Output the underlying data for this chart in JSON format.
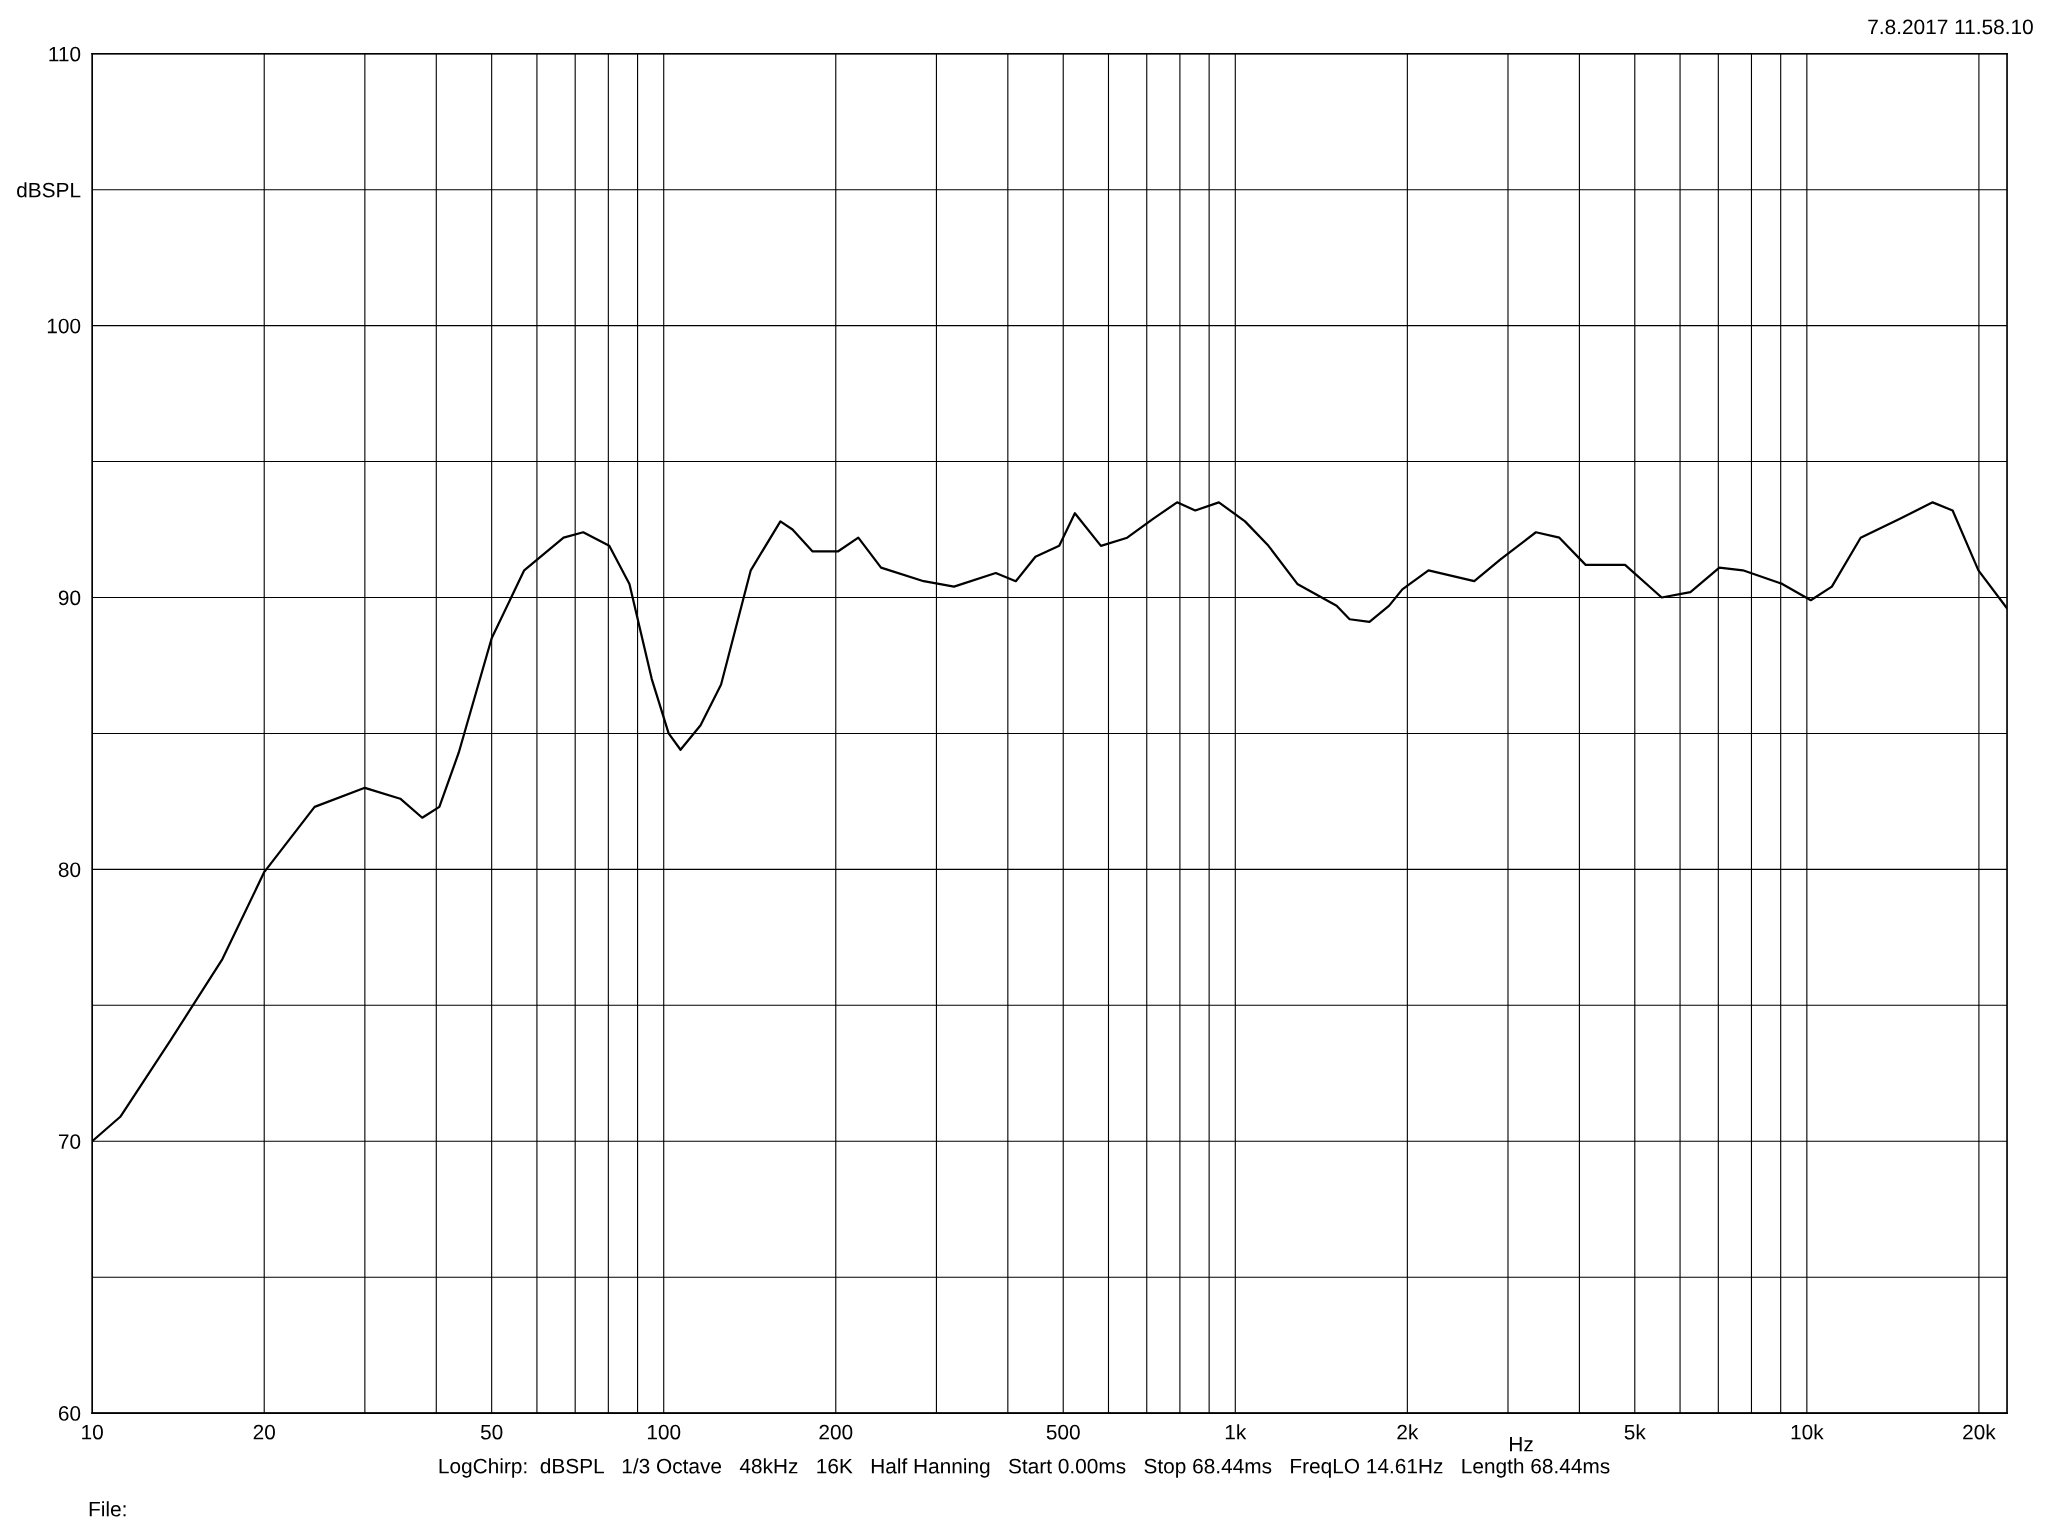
{
  "chart_data": {
    "type": "line",
    "xlabel": "Hz",
    "log": "x",
    "grid": true,
    "marker": "none",
    "line_style": "solid",
    "xlim": [
      10,
      22400
    ],
    "ylim": [
      60,
      110
    ],
    "xticks": [
      10,
      20,
      {
        "value": 30,
        "label": null
      },
      {
        "value": 40,
        "label": null
      },
      50,
      {
        "value": 60,
        "label": null
      },
      {
        "value": 70,
        "label": null
      },
      {
        "value": 80,
        "label": null
      },
      {
        "value": 90,
        "label": null
      },
      100,
      200,
      {
        "value": 300,
        "label": null
      },
      {
        "value": 400,
        "label": null
      },
      500,
      {
        "value": 600,
        "label": null
      },
      {
        "value": 700,
        "label": null
      },
      {
        "value": 800,
        "label": null
      },
      {
        "value": 900,
        "label": null
      },
      {
        "value": 1000,
        "label": "1k"
      },
      {
        "value": 2000,
        "label": "2k"
      },
      {
        "value": 3000,
        "label": null
      },
      {
        "value": 4000,
        "label": null
      },
      {
        "value": 5000,
        "label": "5k"
      },
      {
        "value": 6000,
        "label": null
      },
      {
        "value": 7000,
        "label": null
      },
      {
        "value": 8000,
        "label": null
      },
      {
        "value": 9000,
        "label": null
      },
      {
        "value": 10000,
        "label": "10k"
      },
      {
        "value": 20000,
        "label": "20k"
      }
    ],
    "yticks": [
      60,
      {
        "value": 65,
        "label": null
      },
      70,
      {
        "value": 75,
        "label": null
      },
      80,
      {
        "value": 85,
        "label": null
      },
      90,
      {
        "value": 95,
        "label": null
      },
      100,
      {
        "value": 105,
        "label": "dBSPL"
      },
      110
    ],
    "annotations": [
      "7.8.2017 11.58.10",
      "LogChirp:  dBSPL   1/3 Octave   48kHz   16K   Half Hanning   Start 0.00ms   Stop 68.44ms   FreqLO 14.61Hz   Length 68.44ms",
      "File:"
    ],
    "series": [
      {
        "color": "#000000",
        "x": [
          10,
          11.2,
          13.7,
          16.9,
          20,
          24.5,
          30,
          34.6,
          37.8,
          40.5,
          43.8,
          50,
          57,
          66.8,
          72.3,
          80.3,
          87.1,
          95.3,
          102,
          107,
          116,
          126,
          142,
          160,
          168,
          182,
          202,
          219,
          240,
          285,
          322,
          381,
          413,
          447,
          492,
          524,
          582,
          647,
          719,
          791,
          851,
          936,
          1040,
          1143,
          1284,
          1504,
          1585,
          1717,
          1859,
          1960,
          2178,
          2619,
          2911,
          3357,
          3690,
          4102,
          4808,
          5572,
          6256,
          7030,
          7727,
          9056,
          10160,
          11060,
          12420,
          14550,
          16600,
          17990,
          19960,
          22400
        ],
        "values": [
          70.0,
          70.9,
          73.7,
          76.7,
          79.9,
          82.3,
          83.0,
          82.6,
          81.9,
          82.3,
          84.3,
          88.5,
          91.0,
          92.2,
          92.4,
          91.9,
          90.5,
          87.0,
          85.0,
          84.4,
          85.3,
          86.8,
          91.0,
          92.8,
          92.5,
          91.7,
          91.7,
          92.2,
          91.1,
          90.6,
          90.4,
          90.9,
          90.6,
          91.5,
          91.9,
          93.1,
          91.9,
          92.2,
          92.9,
          93.5,
          93.2,
          93.5,
          92.8,
          91.9,
          90.5,
          89.7,
          89.2,
          89.1,
          89.7,
          90.3,
          91.0,
          90.6,
          91.4,
          92.4,
          92.2,
          91.2,
          91.2,
          90.0,
          90.2,
          91.1,
          91.0,
          90.5,
          89.9,
          90.4,
          92.2,
          92.9,
          93.5,
          93.2,
          91.0,
          89.6
        ]
      }
    ]
  }
}
